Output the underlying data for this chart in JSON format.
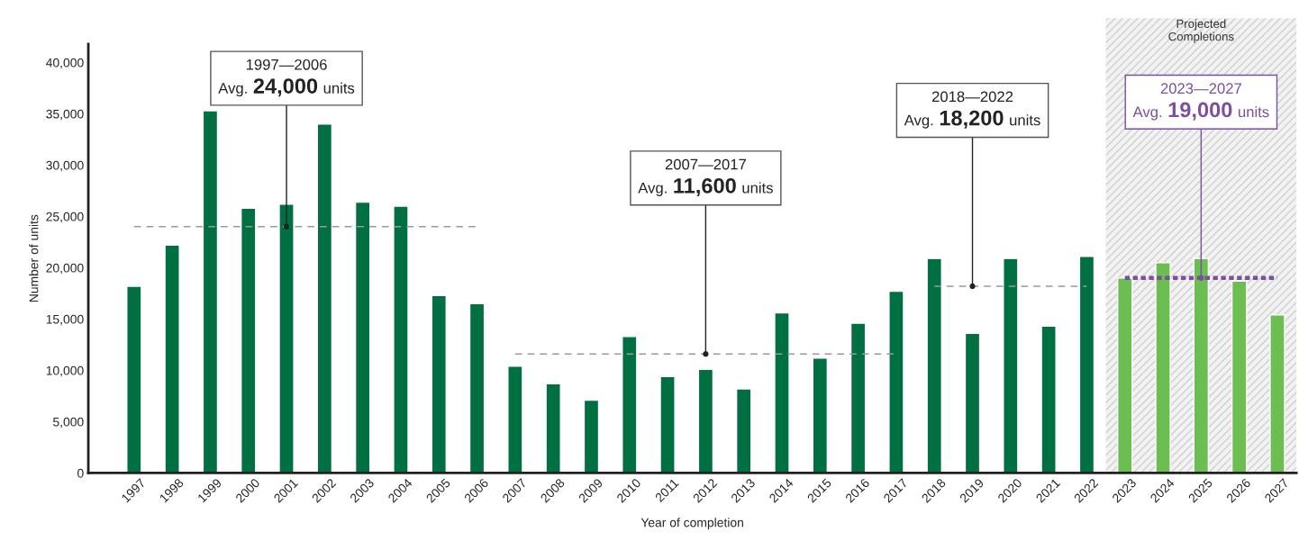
{
  "chart_data": {
    "type": "bar",
    "xlabel": "Year of completion",
    "ylabel": "Number of units",
    "categories": [
      "1997",
      "1998",
      "1999",
      "2000",
      "2001",
      "2002",
      "2003",
      "2004",
      "2005",
      "2006",
      "2007",
      "2008",
      "2009",
      "2010",
      "2011",
      "2012",
      "2013",
      "2014",
      "2015",
      "2016",
      "2017",
      "2018",
      "2019",
      "2020",
      "2021",
      "2022",
      "2023",
      "2024",
      "2025",
      "2026",
      "2027"
    ],
    "series": [
      {
        "values": [
          18200,
          22200,
          35300,
          25800,
          26200,
          34000,
          26400,
          26000,
          17300,
          16500,
          10400,
          8700,
          7100,
          13300,
          9400,
          10100,
          8200,
          15600,
          11200,
          14600,
          17700,
          20900,
          13600,
          20900,
          14300,
          21100,
          19000,
          20500,
          20900,
          18700,
          15400
        ],
        "colors": [
          "#006f41",
          "#006f41",
          "#006f41",
          "#006f41",
          "#006f41",
          "#006f41",
          "#006f41",
          "#006f41",
          "#006f41",
          "#006f41",
          "#006f41",
          "#006f41",
          "#006f41",
          "#006f41",
          "#006f41",
          "#006f41",
          "#006f41",
          "#006f41",
          "#006f41",
          "#006f41",
          "#006f41",
          "#006f41",
          "#006f41",
          "#006f41",
          "#006f41",
          "#006f41",
          "#6dbe52",
          "#6dbe52",
          "#6dbe52",
          "#6dbe52",
          "#6dbe52"
        ]
      },
      {
        "type": "line",
        "values": [
          24000,
          24000,
          24000,
          24000,
          24000,
          24000,
          24000,
          24000,
          24000,
          24000,
          null,
          null,
          null,
          null,
          null,
          null,
          null,
          null,
          null,
          null,
          null,
          null,
          null,
          null,
          null,
          null,
          null,
          null,
          null,
          null,
          null
        ],
        "color": "#999999",
        "line_style": "dashed"
      },
      {
        "type": "line",
        "values": [
          null,
          null,
          null,
          null,
          null,
          null,
          null,
          null,
          null,
          null,
          11600,
          11600,
          11600,
          11600,
          11600,
          11600,
          11600,
          11600,
          11600,
          11600,
          11600,
          null,
          null,
          null,
          null,
          null,
          null,
          null,
          null,
          null,
          null
        ],
        "color": "#999999",
        "line_style": "dashed"
      },
      {
        "type": "line",
        "values": [
          null,
          null,
          null,
          null,
          null,
          null,
          null,
          null,
          null,
          null,
          null,
          null,
          null,
          null,
          null,
          null,
          null,
          null,
          null,
          null,
          null,
          18200,
          18200,
          18200,
          18200,
          18200,
          null,
          null,
          null,
          null,
          null
        ],
        "color": "#999999",
        "line_style": "dashed"
      },
      {
        "type": "line",
        "values": [
          null,
          null,
          null,
          null,
          null,
          null,
          null,
          null,
          null,
          null,
          null,
          null,
          null,
          null,
          null,
          null,
          null,
          null,
          null,
          null,
          null,
          null,
          null,
          null,
          null,
          null,
          19000,
          19000,
          19000,
          19000,
          19000
        ],
        "color": "#7b4f9d",
        "line_style": "dotted"
      }
    ],
    "annotations": [
      {
        "text": "1997—2006\nAvg. 24,000 units",
        "x": "2001",
        "y": 24000
      },
      {
        "text": "2007—2017\nAvg. 11,600 units",
        "x": "2012",
        "y": 11600
      },
      {
        "text": "2018—2022\nAvg. 18,200 units",
        "x": "2019",
        "y": 18200
      },
      {
        "text": "2023—2027\nAvg. 19,000 units",
        "x": "2025",
        "y": 19000
      }
    ],
    "bands": [
      {
        "axis": "x",
        "from": "2023",
        "to": "2027",
        "label": "Projected\nCompletions",
        "color": "#f2f2f2"
      }
    ],
    "ylim": [
      0,
      41800
    ],
    "yticks": [
      0,
      {
        "value": 5000,
        "label": "5,000"
      },
      {
        "value": 10000,
        "label": "10,000"
      },
      {
        "value": 15000,
        "label": "15,000"
      },
      {
        "value": 20000,
        "label": "20,000"
      },
      {
        "value": 25000,
        "label": "25,000"
      },
      {
        "value": 30000,
        "label": "30,000"
      },
      {
        "value": 35000,
        "label": "35,000"
      },
      {
        "value": 40000,
        "label": "40,000"
      }
    ],
    "grid": false,
    "legend": false
  }
}
